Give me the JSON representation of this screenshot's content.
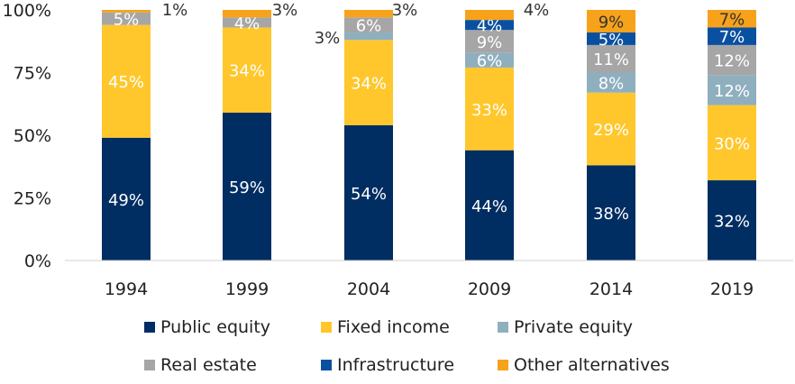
{
  "chart_data": {
    "type": "bar",
    "stacked": true,
    "title": "",
    "xlabel": "",
    "ylabel": "",
    "ylim": [
      0,
      100
    ],
    "y_ticks": [
      "0%",
      "25%",
      "50%",
      "75%",
      "100%"
    ],
    "categories": [
      "1994",
      "1999",
      "2004",
      "2009",
      "2014",
      "2019"
    ],
    "series": [
      {
        "name": "Public equity",
        "color": "#002D62",
        "values": [
          49,
          59,
          54,
          44,
          38,
          32
        ],
        "labels": [
          "49%",
          "59%",
          "54%",
          "44%",
          "38%",
          "32%"
        ]
      },
      {
        "name": "Fixed income",
        "color": "#FFC72C",
        "values": [
          45,
          34,
          34,
          33,
          29,
          30
        ],
        "labels": [
          "45%",
          "34%",
          "34%",
          "33%",
          "29%",
          "30%"
        ]
      },
      {
        "name": "Private equity",
        "color": "#8FAFBF",
        "values": [
          0,
          0,
          3,
          6,
          8,
          12
        ],
        "labels": [
          "",
          "",
          "3%",
          "6%",
          "8%",
          "12%"
        ]
      },
      {
        "name": "Real estate",
        "color": "#A6A6A6",
        "values": [
          5,
          4,
          6,
          9,
          11,
          12
        ],
        "labels": [
          "5%",
          "4%",
          "6%",
          "9%",
          "11%",
          "12%"
        ]
      },
      {
        "name": "Infrastructure",
        "color": "#0A50A1",
        "values": [
          0,
          0,
          0,
          4,
          5,
          7
        ],
        "labels": [
          "",
          "",
          "",
          "4%",
          "5%",
          "7%"
        ]
      },
      {
        "name": "Other alternatives",
        "color": "#F7A21B",
        "values": [
          1,
          3,
          3,
          4,
          9,
          7
        ],
        "labels": [
          "1%",
          "3%",
          "3%",
          "4%",
          "9%",
          "7%"
        ]
      }
    ],
    "legend_position": "bottom"
  }
}
